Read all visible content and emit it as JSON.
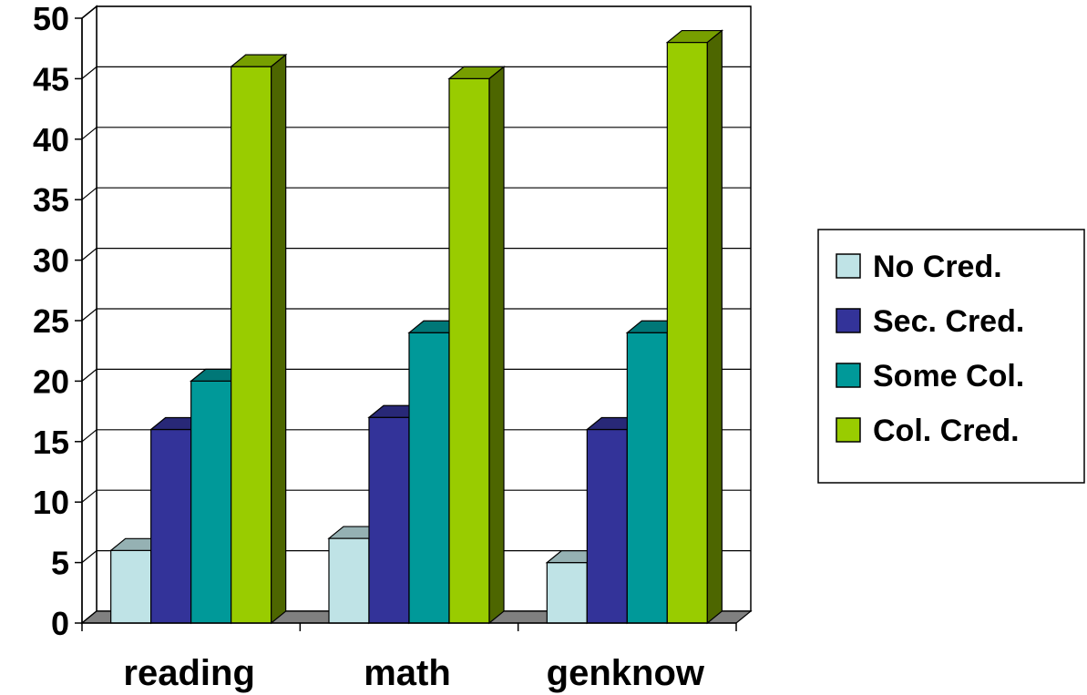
{
  "chart_data": {
    "type": "bar",
    "title": "",
    "xlabel": "",
    "ylabel": "",
    "categories": [
      "reading",
      "math",
      "genknow"
    ],
    "series": [
      {
        "name": "No Cred.",
        "values": [
          6,
          7,
          5
        ],
        "color": "#bfe3e6"
      },
      {
        "name": "Sec. Cred.",
        "values": [
          16,
          17,
          16
        ],
        "color": "#333399"
      },
      {
        "name": "Some Col.",
        "values": [
          20,
          24,
          24
        ],
        "color": "#009999"
      },
      {
        "name": "Col. Cred.",
        "values": [
          46,
          45,
          48
        ],
        "color": "#99cc00"
      }
    ],
    "ylim": [
      0,
      50
    ],
    "yticks": [
      0,
      5,
      10,
      15,
      20,
      25,
      30,
      35,
      40,
      45,
      50
    ],
    "grid": true,
    "three_d": true,
    "legend_position": "right"
  }
}
